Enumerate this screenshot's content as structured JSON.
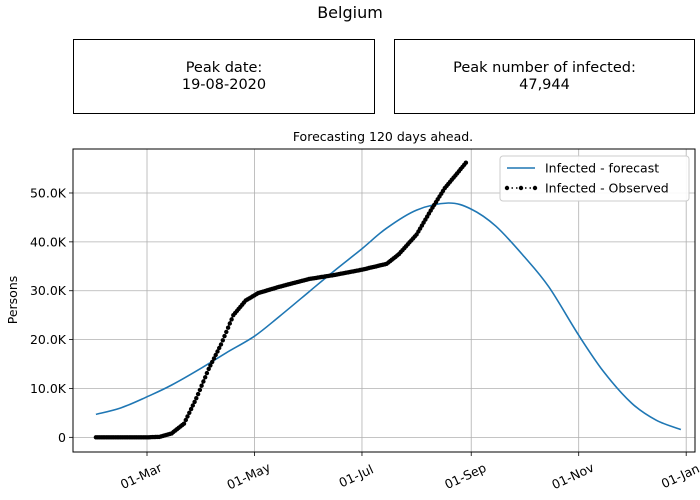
{
  "figure": {
    "title": "Belgium",
    "peak_date_label": "Peak date:",
    "peak_date_value": "19-08-2020",
    "peak_number_label": "Peak number of infected:",
    "peak_number_value": "47,944"
  },
  "colors": {
    "forecast": "#1f77b4",
    "observed": "#000000",
    "grid": "#b0b0b0"
  },
  "chart_data": {
    "type": "line",
    "title": "Forecasting 120 days ahead.",
    "ylabel": "Persons",
    "xlabel": "",
    "x_axis_type": "date",
    "xlim": [
      "2020-01-19",
      "2021-01-06"
    ],
    "ylim": [
      -3000,
      59000
    ],
    "grid": true,
    "legend_position": "top-right",
    "x_ticks": [
      {
        "date": "2020-03-01",
        "label": "01-Mar"
      },
      {
        "date": "2020-05-01",
        "label": "01-May"
      },
      {
        "date": "2020-07-01",
        "label": "01-Jul"
      },
      {
        "date": "2020-09-01",
        "label": "01-Sep"
      },
      {
        "date": "2020-11-01",
        "label": "01-Nov"
      },
      {
        "date": "2021-01-01",
        "label": "01-Jan"
      }
    ],
    "y_ticks": [
      {
        "value": 0,
        "label": "0"
      },
      {
        "value": 10000,
        "label": "10.0K"
      },
      {
        "value": 20000,
        "label": "20.0K"
      },
      {
        "value": 30000,
        "label": "30.0K"
      },
      {
        "value": 40000,
        "label": "40.0K"
      },
      {
        "value": 50000,
        "label": "50.0K"
      }
    ],
    "series": [
      {
        "name": "Infected - forecast",
        "style": "line",
        "points": [
          [
            "2020-02-01",
            4700
          ],
          [
            "2020-02-15",
            6000
          ],
          [
            "2020-03-01",
            8300
          ],
          [
            "2020-03-15",
            10700
          ],
          [
            "2020-04-01",
            14200
          ],
          [
            "2020-04-15",
            17300
          ],
          [
            "2020-05-01",
            20700
          ],
          [
            "2020-05-15",
            24700
          ],
          [
            "2020-06-01",
            29800
          ],
          [
            "2020-06-15",
            34000
          ],
          [
            "2020-07-01",
            38600
          ],
          [
            "2020-07-15",
            42800
          ],
          [
            "2020-08-01",
            46500
          ],
          [
            "2020-08-19",
            47944
          ],
          [
            "2020-09-01",
            46700
          ],
          [
            "2020-09-15",
            43200
          ],
          [
            "2020-10-01",
            37000
          ],
          [
            "2020-10-15",
            30800
          ],
          [
            "2020-11-01",
            20900
          ],
          [
            "2020-11-15",
            13500
          ],
          [
            "2020-12-01",
            7000
          ],
          [
            "2020-12-15",
            3500
          ],
          [
            "2020-12-29",
            1600
          ]
        ]
      },
      {
        "name": "Infected - Observed",
        "style": "dotted-markers",
        "points": [
          [
            "2020-02-01",
            0
          ],
          [
            "2020-02-15",
            0
          ],
          [
            "2020-03-01",
            0
          ],
          [
            "2020-03-08",
            100
          ],
          [
            "2020-03-15",
            800
          ],
          [
            "2020-03-22",
            2800
          ],
          [
            "2020-03-29",
            8000
          ],
          [
            "2020-04-05",
            14000
          ],
          [
            "2020-04-12",
            19000
          ],
          [
            "2020-04-19",
            25000
          ],
          [
            "2020-04-26",
            28000
          ],
          [
            "2020-05-03",
            29500
          ],
          [
            "2020-05-15",
            30800
          ],
          [
            "2020-06-01",
            32400
          ],
          [
            "2020-06-15",
            33200
          ],
          [
            "2020-07-01",
            34300
          ],
          [
            "2020-07-15",
            35500
          ],
          [
            "2020-07-22",
            37500
          ],
          [
            "2020-08-01",
            41500
          ],
          [
            "2020-08-10",
            47000
          ],
          [
            "2020-08-17",
            51000
          ],
          [
            "2020-08-24",
            54000
          ],
          [
            "2020-08-29",
            56200
          ]
        ]
      }
    ]
  }
}
